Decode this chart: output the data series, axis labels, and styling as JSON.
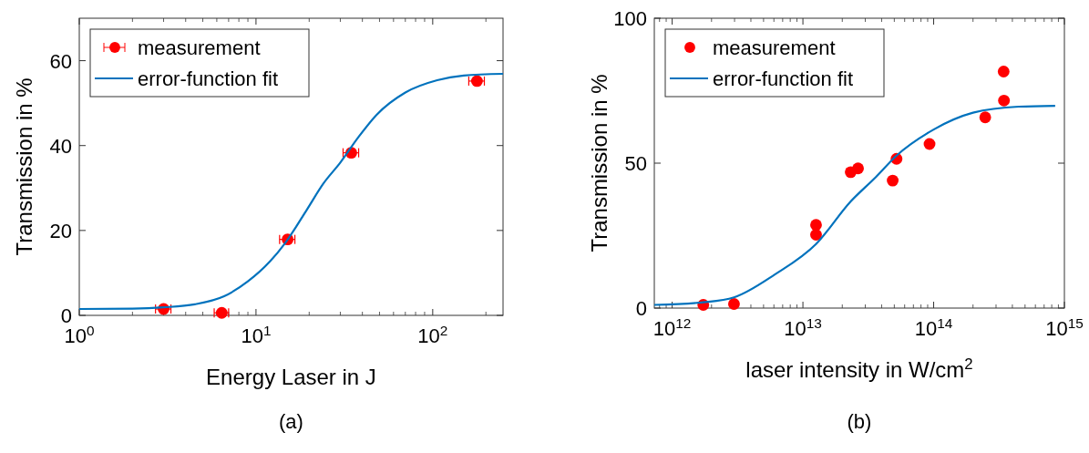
{
  "chart_data": [
    {
      "type": "scatter",
      "xlabel": "Energy Laser in J",
      "ylabel": "Transmission in %",
      "log": "x",
      "xlim": [
        1,
        250
      ],
      "ylim": [
        0,
        70
      ],
      "xticks": [
        {
          "value": 1,
          "label": "10$^{0}$"
        },
        {
          "value": 10,
          "label": "10$^{1}$"
        },
        {
          "value": 100,
          "label": "10$^{2}$"
        }
      ],
      "yticks": [
        0,
        20,
        40,
        60
      ],
      "legend": "top left",
      "annotations": [
        "(a)"
      ],
      "series": [
        {
          "name": "measurement",
          "marker": "circle",
          "color": "#ff0000",
          "x": [
            3,
            6.4,
            15.1,
            34.6,
            178
          ],
          "values": [
            1.5,
            0.6,
            17.9,
            38.3,
            55.2
          ],
          "xerrors": [
            0.3,
            0.6,
            1.5,
            3.5,
            18
          ]
        },
        {
          "name": "error-function fit",
          "type": "line",
          "color": "#0072bd",
          "line_style": "solid",
          "x": [
            1,
            2,
            3,
            4.5,
            6.6,
            9,
            12,
            14.6,
            19.4,
            24,
            30,
            38,
            48,
            70,
            106,
            150,
            250
          ],
          "values": [
            1.5,
            1.6,
            1.9,
            2.6,
            4.5,
            8,
            12.7,
            17,
            24.9,
            31,
            36,
            42,
            47.2,
            52.5,
            55.4,
            56.5,
            56.9
          ]
        }
      ]
    },
    {
      "type": "scatter",
      "xlabel": "laser intensity in W/cm$^{2}$",
      "ylabel": "Transmission in %",
      "log": "x",
      "xlim": [
        730000000000.0,
        1000000000000000.0
      ],
      "ylim": [
        0,
        100
      ],
      "xticks": [
        {
          "value": 1000000000000.0,
          "label": "10$^{12}$"
        },
        {
          "value": 10000000000000.0,
          "label": "10$^{13}$"
        },
        {
          "value": 100000000000000.0,
          "label": "10$^{14}$"
        },
        {
          "value": 1000000000000000.0,
          "label": "10$^{15}$"
        }
      ],
      "yticks": [
        0,
        50,
        100
      ],
      "legend": "top left",
      "annotations": [
        "(b)"
      ],
      "series": [
        {
          "name": "measurement",
          "marker": "circle",
          "color": "#ff0000",
          "x": [
            1730000000000.0,
            2970000000000.0,
            12600000000000.0,
            12600000000000.0,
            23200000000000.0,
            26400000000000.0,
            48600000000000.0,
            52000000000000.0,
            93000000000000.0,
            248000000000000.0,
            343000000000000.0,
            345000000000000.0
          ],
          "values": [
            1.1,
            1.4,
            28.7,
            25.3,
            46.9,
            48.2,
            44.0,
            51.5,
            56.6,
            65.8,
            81.6,
            71.6
          ]
        },
        {
          "name": "error-function fit",
          "type": "line",
          "color": "#0072bd",
          "line_style": "solid",
          "x": [
            730000000000.0,
            1730000000000.0,
            2970000000000.0,
            6100000000000.0,
            12600000000000.0,
            23200000000000.0,
            36300000000000.0,
            52000000000000.0,
            100000000000000.0,
            200000000000000.0,
            447000000000000.0,
            850000000000000.0
          ],
          "values": [
            1.1,
            2,
            3.7,
            11.6,
            22.1,
            36.8,
            45.3,
            52.6,
            61.6,
            67.4,
            69.5,
            69.8
          ]
        }
      ]
    }
  ]
}
